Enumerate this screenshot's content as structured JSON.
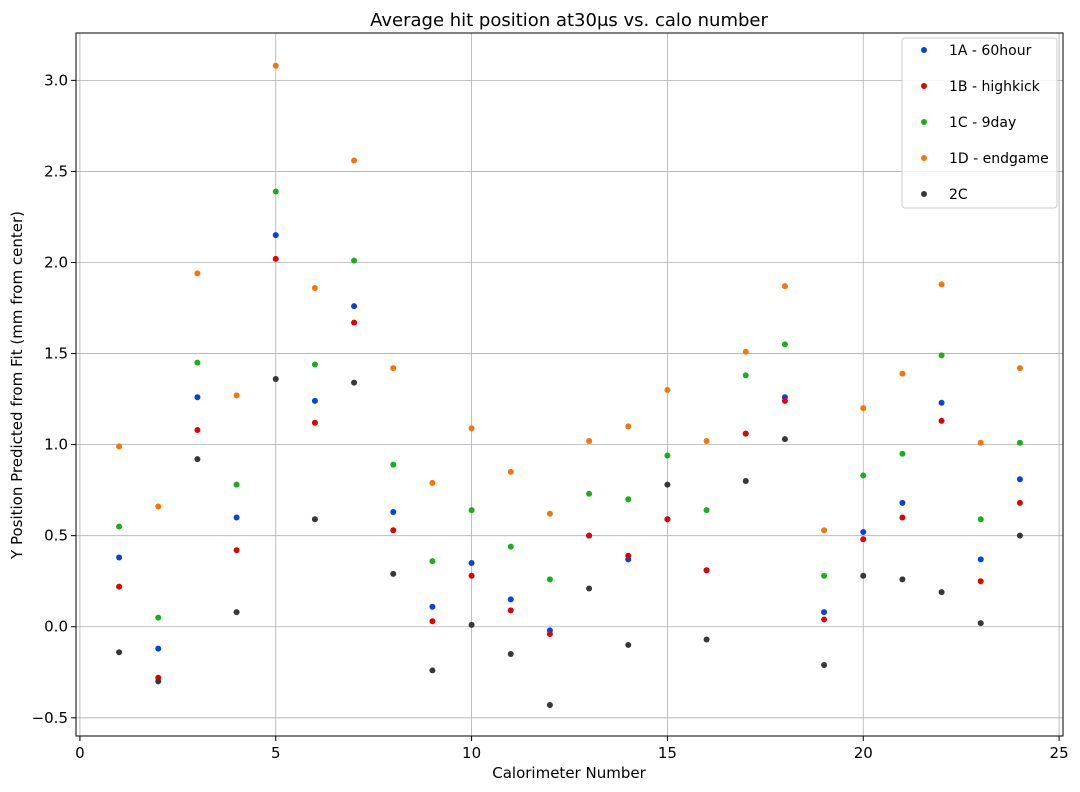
{
  "chart_data": {
    "type": "scatter",
    "title": "Average hit position at30μs vs. calo number",
    "xlabel": "Calorimeter Number",
    "ylabel": "Y Position Predicted from Fit (mm from center)",
    "xlim": [
      -0.1,
      25.1
    ],
    "ylim": [
      -0.6,
      3.26
    ],
    "xticks": [
      0,
      5,
      10,
      15,
      20,
      25
    ],
    "yticks": [
      -0.5,
      0.0,
      0.5,
      1.0,
      1.5,
      2.0,
      2.5,
      3.0
    ],
    "ytick_labels": [
      "−0.5",
      "0.0",
      "0.5",
      "1.0",
      "1.5",
      "2.0",
      "2.5",
      "3.0"
    ],
    "grid": true,
    "legend_position": "top-right",
    "x": [
      1,
      2,
      3,
      4,
      5,
      6,
      7,
      8,
      9,
      10,
      11,
      12,
      13,
      14,
      15,
      16,
      17,
      18,
      19,
      20,
      21,
      22,
      23,
      24
    ],
    "series": [
      {
        "name": "1A - 60hour",
        "color": "#0343df",
        "values": [
          0.38,
          -0.12,
          1.26,
          0.6,
          2.15,
          1.24,
          1.76,
          0.63,
          0.11,
          0.35,
          0.15,
          -0.02,
          0.5,
          0.37,
          0.59,
          0.31,
          1.06,
          1.26,
          0.08,
          0.52,
          0.68,
          1.23,
          0.37,
          0.81
        ]
      },
      {
        "name": "1B - highkick",
        "color": "#e50000",
        "values": [
          0.22,
          -0.28,
          1.08,
          0.42,
          2.02,
          1.12,
          1.67,
          0.53,
          0.03,
          0.28,
          0.09,
          -0.04,
          0.5,
          0.39,
          0.59,
          0.31,
          1.06,
          1.24,
          0.04,
          0.48,
          0.6,
          1.13,
          0.25,
          0.68
        ]
      },
      {
        "name": "1C - 9day",
        "color": "#15b01a",
        "values": [
          0.55,
          0.05,
          1.45,
          0.78,
          2.39,
          1.44,
          2.01,
          0.89,
          0.36,
          0.64,
          0.44,
          0.26,
          0.73,
          0.7,
          0.94,
          0.64,
          1.38,
          1.55,
          0.28,
          0.83,
          0.95,
          1.49,
          0.59,
          1.01
        ]
      },
      {
        "name": "1D - endgame",
        "color": "#f97306",
        "values": [
          0.99,
          0.66,
          1.94,
          1.27,
          3.08,
          1.86,
          2.56,
          1.42,
          0.79,
          1.09,
          0.85,
          0.62,
          1.02,
          1.1,
          1.3,
          1.02,
          1.51,
          1.87,
          0.53,
          1.2,
          1.39,
          1.88,
          1.01,
          1.42
        ]
      },
      {
        "name": "2C",
        "color": "#363737",
        "values": [
          -0.14,
          -0.3,
          0.92,
          0.08,
          1.36,
          0.59,
          1.34,
          0.29,
          -0.24,
          0.01,
          -0.15,
          -0.43,
          0.21,
          -0.1,
          0.78,
          -0.07,
          0.8,
          1.03,
          -0.21,
          0.28,
          0.26,
          0.19,
          0.02,
          0.5
        ]
      }
    ]
  }
}
